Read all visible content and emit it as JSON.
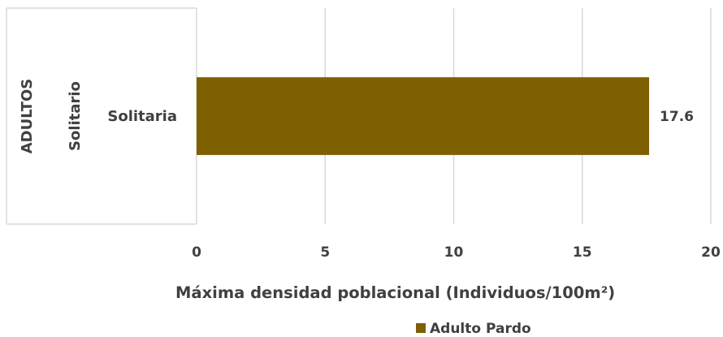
{
  "chart_data": {
    "type": "bar",
    "orientation": "horizontal",
    "categories": [
      "Solitaria"
    ],
    "category_groups": [
      {
        "level": "outer",
        "label": "ADULTOS"
      },
      {
        "level": "middle",
        "label": "Solitario"
      }
    ],
    "series": [
      {
        "name": "Adulto Pardo",
        "values": [
          17.6
        ],
        "color": "#7f6000"
      }
    ],
    "data_labels": [
      "17.6"
    ],
    "xlabel": "Máxima densidad poblacional (Individuos/100m²)",
    "xlim": [
      0,
      20
    ],
    "xticks": [
      0,
      5,
      10,
      15,
      20
    ],
    "grid": "vertical",
    "legend": "bottom"
  }
}
